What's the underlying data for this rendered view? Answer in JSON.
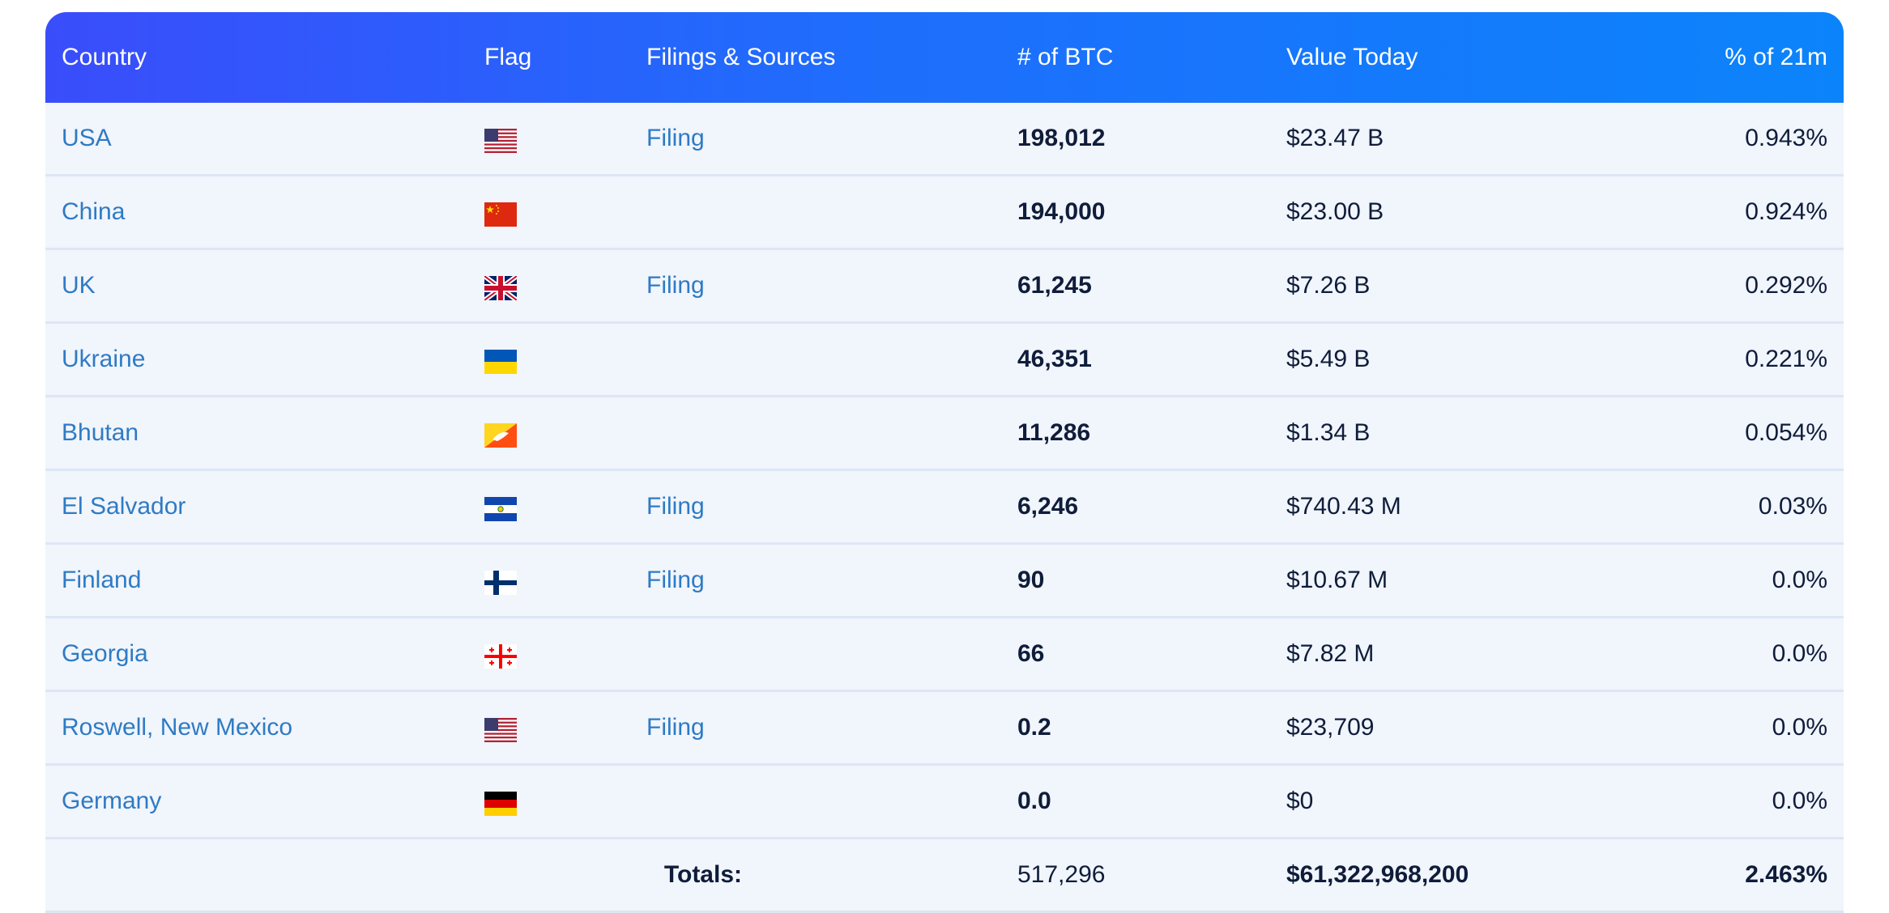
{
  "headers": {
    "country": "Country",
    "flag": "Flag",
    "filings": "Filings & Sources",
    "btc": "# of BTC",
    "value": "Value Today",
    "pct": "% of 21m"
  },
  "rows": [
    {
      "country": "USA",
      "flag": "us-flag-icon",
      "filing": "Filing",
      "btc": "198,012",
      "value": "$23.47 B",
      "pct": "0.943%"
    },
    {
      "country": "China",
      "flag": "china-flag-icon",
      "filing": "",
      "btc": "194,000",
      "value": "$23.00 B",
      "pct": "0.924%"
    },
    {
      "country": "UK",
      "flag": "uk-flag-icon",
      "filing": "Filing",
      "btc": "61,245",
      "value": "$7.26 B",
      "pct": "0.292%"
    },
    {
      "country": "Ukraine",
      "flag": "ukraine-flag-icon",
      "filing": "",
      "btc": "46,351",
      "value": "$5.49 B",
      "pct": "0.221%"
    },
    {
      "country": "Bhutan",
      "flag": "bhutan-flag-icon",
      "filing": "",
      "btc": "11,286",
      "value": "$1.34 B",
      "pct": "0.054%"
    },
    {
      "country": "El Salvador",
      "flag": "el-salvador-flag-icon",
      "filing": "Filing",
      "btc": "6,246",
      "value": "$740.43 M",
      "pct": "0.03%"
    },
    {
      "country": "Finland",
      "flag": "finland-flag-icon",
      "filing": "Filing",
      "btc": "90",
      "value": "$10.67 M",
      "pct": "0.0%"
    },
    {
      "country": "Georgia",
      "flag": "georgia-flag-icon",
      "filing": "",
      "btc": "66",
      "value": "$7.82 M",
      "pct": "0.0%"
    },
    {
      "country": "Roswell, New Mexico",
      "flag": "us-flag-icon",
      "filing": "Filing",
      "btc": "0.2",
      "value": "$23,709",
      "pct": "0.0%"
    },
    {
      "country": "Germany",
      "flag": "germany-flag-icon",
      "filing": "",
      "btc": "0.0",
      "value": "$0",
      "pct": "0.0%"
    }
  ],
  "totals": {
    "label": "Totals:",
    "btc": "517,296",
    "value": "$61,322,968,200",
    "pct": "2.463%"
  },
  "colors": {
    "header_start": "#3a4dfb",
    "header_end": "#0b84fb",
    "link": "#2e7bc4",
    "row_bg": "#f1f5fc"
  }
}
